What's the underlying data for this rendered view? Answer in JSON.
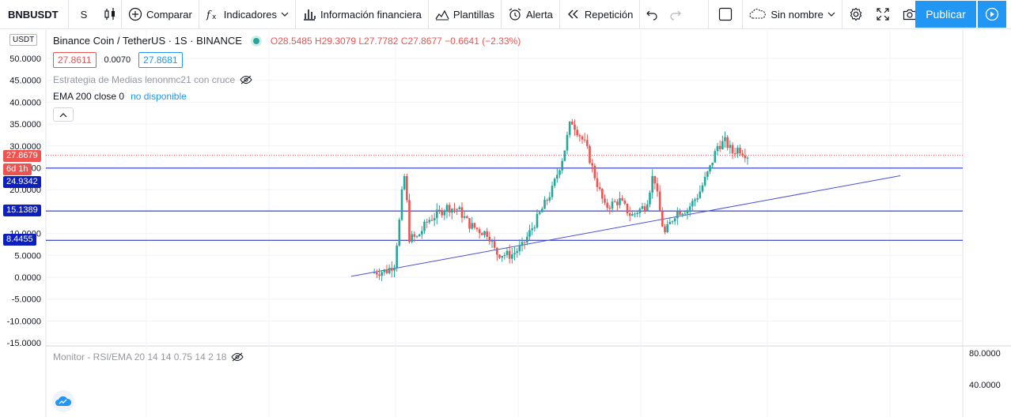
{
  "toolbar": {
    "symbol": "BNBUSDT",
    "interval": "S",
    "compare": "Comparar",
    "indicators": "Indicadores",
    "financials": "Información financiera",
    "templates": "Plantillas",
    "alert": "Alerta",
    "replay": "Repetición",
    "layout_name": "Sin nombre",
    "publish": "Publicar"
  },
  "legend": {
    "title": "Binance Coin / TetherUS · 1S · BINANCE",
    "open": "O28.5485",
    "high": "H29.3079",
    "low": "L27.7782",
    "close": "C27.8677",
    "change": "−0.6641 (−2.33%)",
    "bid": "27.8611",
    "spread": "0.0070",
    "ask": "27.8681",
    "study1": "Estrategia de Medias lenonmc21 con cruce",
    "study2_name": "EMA 200 close 0",
    "study2_value": "no disponible",
    "currency": "USDT"
  },
  "price_tags": {
    "last": "27.8679",
    "countdown": "6d 1h",
    "lines": [
      "24.9342",
      "15.1389",
      "8.4455"
    ]
  },
  "rsi": {
    "legend": "Monitor - RSI/EMA 20 14 14 0.75 14 2 18",
    "ticks": [
      "80.0000",
      "40.0000"
    ]
  },
  "colors": {
    "up": "#26a69a",
    "down": "#ef5350",
    "hline": "#0d1fbc",
    "trend": "#4b4fd8",
    "accent": "#2196f3"
  },
  "chart_data": {
    "type": "candlestick",
    "y_ticks": [
      50,
      45,
      40,
      35,
      30,
      25,
      20,
      15,
      10,
      5,
      0,
      -5,
      -10,
      -15
    ],
    "ylim": [
      -15,
      50
    ],
    "horizontal_lines": [
      24.9342,
      15.1389,
      8.4455
    ],
    "trendline": [
      {
        "t": 0,
        "v": 0.2
      },
      {
        "t": 1,
        "v": 23.2
      }
    ],
    "path": [
      [
        0.0,
        1.0
      ],
      [
        0.04,
        1.5
      ],
      [
        0.06,
        3.0
      ],
      [
        0.075,
        14.0
      ],
      [
        0.085,
        24.0
      ],
      [
        0.09,
        21.0
      ],
      [
        0.1,
        9.0
      ],
      [
        0.12,
        9.0
      ],
      [
        0.15,
        13.0
      ],
      [
        0.2,
        16.0
      ],
      [
        0.23,
        15.5
      ],
      [
        0.26,
        12.0
      ],
      [
        0.29,
        10.5
      ],
      [
        0.31,
        10.0
      ],
      [
        0.33,
        5.5
      ],
      [
        0.37,
        5.0
      ],
      [
        0.4,
        7.0
      ],
      [
        0.45,
        15.0
      ],
      [
        0.48,
        20.0
      ],
      [
        0.51,
        28.0
      ],
      [
        0.53,
        36.0
      ],
      [
        0.55,
        33.0
      ],
      [
        0.57,
        30.0
      ],
      [
        0.59,
        24.0
      ],
      [
        0.62,
        16.0
      ],
      [
        0.66,
        17.5
      ],
      [
        0.69,
        14.0
      ],
      [
        0.73,
        16.5
      ],
      [
        0.75,
        24.0
      ],
      [
        0.77,
        13.0
      ],
      [
        0.78,
        10.0
      ],
      [
        0.81,
        15.0
      ],
      [
        0.84,
        15.5
      ],
      [
        0.87,
        19.0
      ],
      [
        0.9,
        25.0
      ],
      [
        0.92,
        30.0
      ],
      [
        0.94,
        31.0
      ],
      [
        0.96,
        28.5
      ],
      [
        0.975,
        29.5
      ],
      [
        1.0,
        27.87
      ]
    ]
  }
}
